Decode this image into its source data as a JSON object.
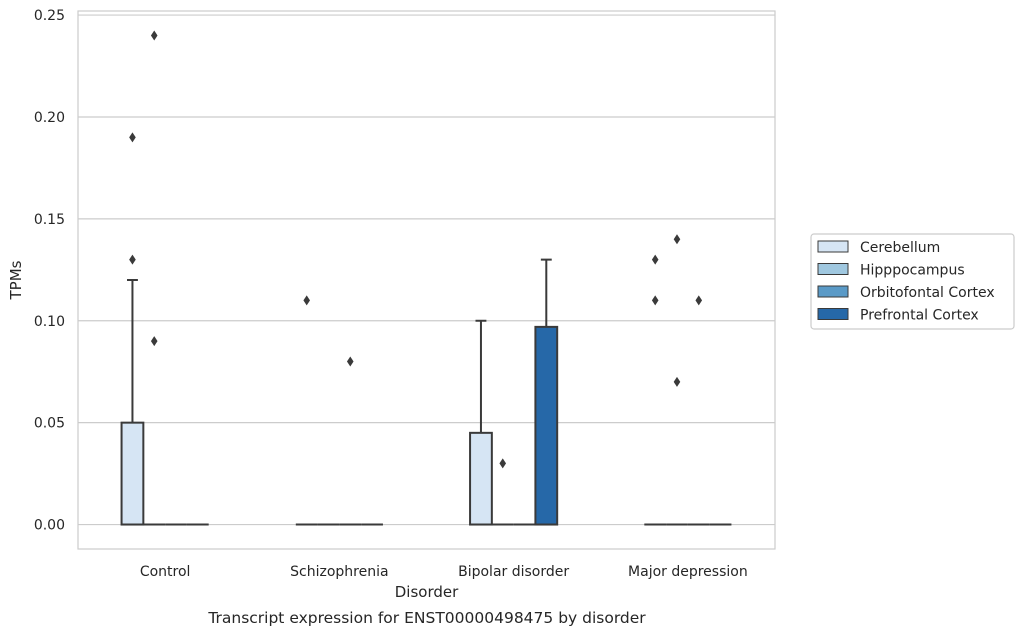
{
  "caption": "Transcript expression for ENST00000498475 by disorder",
  "chart_data": {
    "type": "box",
    "title": "",
    "xlabel": "Disorder",
    "ylabel": "TPMs",
    "ylim": [
      -0.012,
      0.252
    ],
    "yticks": [
      "0.00",
      "0.05",
      "0.10",
      "0.15",
      "0.20",
      "0.25"
    ],
    "ytick_values": [
      0,
      0.05,
      0.1,
      0.15,
      0.2,
      0.25
    ],
    "grid": "horizontal",
    "legend_position": "right",
    "categories": [
      "Control",
      "Schizophrenia",
      "Bipolar disorder",
      "Major depression"
    ],
    "series": [
      {
        "name": "Cerebellum",
        "color": "#d6e5f4",
        "boxes": [
          {
            "q1": 0,
            "median": 0,
            "q3": 0.05,
            "whisker_low": 0,
            "whisker_high": 0.12,
            "outliers": [
              0.13,
              0.19
            ]
          },
          {
            "q1": 0,
            "median": 0,
            "q3": 0,
            "whisker_low": 0,
            "whisker_high": 0,
            "outliers": [
              0.11
            ]
          },
          {
            "q1": 0,
            "median": 0,
            "q3": 0.045,
            "whisker_low": 0,
            "whisker_high": 0.1,
            "outliers": []
          },
          {
            "q1": 0,
            "median": 0,
            "q3": 0,
            "whisker_low": 0,
            "whisker_high": 0,
            "outliers": [
              0.11,
              0.13
            ]
          }
        ]
      },
      {
        "name": "Hipppocampus",
        "color": "#a0c8e0",
        "boxes": [
          {
            "q1": 0,
            "median": 0,
            "q3": 0,
            "whisker_low": 0,
            "whisker_high": 0,
            "outliers": [
              0.09,
              0.24
            ]
          },
          {
            "q1": 0,
            "median": 0,
            "q3": 0,
            "whisker_low": 0,
            "whisker_high": 0,
            "outliers": []
          },
          {
            "q1": 0,
            "median": 0,
            "q3": 0,
            "whisker_low": 0,
            "whisker_high": 0,
            "outliers": [
              0.03
            ]
          },
          {
            "q1": 0,
            "median": 0,
            "q3": 0,
            "whisker_low": 0,
            "whisker_high": 0,
            "outliers": [
              0.07,
              0.14
            ]
          }
        ]
      },
      {
        "name": "Orbitofontal Cortex",
        "color": "#5a9ac7",
        "boxes": [
          {
            "q1": 0,
            "median": 0,
            "q3": 0,
            "whisker_low": 0,
            "whisker_high": 0,
            "outliers": []
          },
          {
            "q1": 0,
            "median": 0,
            "q3": 0,
            "whisker_low": 0,
            "whisker_high": 0,
            "outliers": [
              0.08
            ]
          },
          {
            "q1": 0,
            "median": 0,
            "q3": 0,
            "whisker_low": 0,
            "whisker_high": 0,
            "outliers": []
          },
          {
            "q1": 0,
            "median": 0,
            "q3": 0,
            "whisker_low": 0,
            "whisker_high": 0,
            "outliers": [
              0.11
            ]
          }
        ]
      },
      {
        "name": "Prefrontal Cortex",
        "color": "#2668a8",
        "boxes": [
          {
            "q1": 0,
            "median": 0,
            "q3": 0,
            "whisker_low": 0,
            "whisker_high": 0,
            "outliers": []
          },
          {
            "q1": 0,
            "median": 0,
            "q3": 0,
            "whisker_low": 0,
            "whisker_high": 0,
            "outliers": []
          },
          {
            "q1": 0,
            "median": 0,
            "q3": 0.097,
            "whisker_low": 0,
            "whisker_high": 0.13,
            "outliers": []
          },
          {
            "q1": 0,
            "median": 0,
            "q3": 0,
            "whisker_low": 0,
            "whisker_high": 0,
            "outliers": []
          }
        ]
      }
    ]
  }
}
